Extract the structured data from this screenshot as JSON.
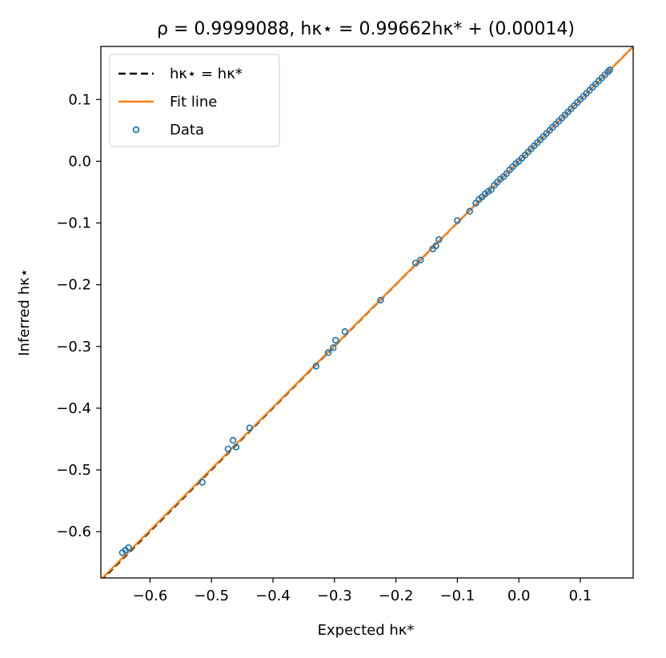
{
  "chart_data": {
    "type": "scatter",
    "title": "ρ = 0.9999088,   hκ⋆ = 0.99662hκ* + (0.00014)",
    "xlabel": "Expected hκ*",
    "ylabel": "Inferred hκ⋆",
    "xlim": [
      -0.68,
      0.186
    ],
    "ylim": [
      -0.675,
      0.186
    ],
    "xticks": [
      -0.6,
      -0.5,
      -0.4,
      -0.3,
      -0.2,
      -0.1,
      0.0,
      0.1
    ],
    "xtick_labels": [
      "−0.6",
      "−0.5",
      "−0.4",
      "−0.3",
      "−0.2",
      "−0.1",
      "0.0",
      "0.1"
    ],
    "yticks": [
      -0.6,
      -0.5,
      -0.4,
      -0.3,
      -0.2,
      -0.1,
      0.0,
      0.1
    ],
    "ytick_labels": [
      "−0.6",
      "−0.5",
      "−0.4",
      "−0.3",
      "−0.2",
      "−0.1",
      "0.0",
      "0.1"
    ],
    "grid": false,
    "legend_position": "top-left",
    "legend": [
      {
        "label": "hκ⋆ = hκ*",
        "style": "dashed",
        "color": "#000000"
      },
      {
        "label": "Fit line",
        "style": "solid",
        "color": "#ff7f0e"
      },
      {
        "label": "Data",
        "style": "marker",
        "color": "#1f77b4"
      }
    ],
    "identity_line": {
      "slope": 1,
      "intercept": 0
    },
    "fit_line": {
      "slope": 0.99662,
      "intercept": 0.00014
    },
    "series": [
      {
        "name": "Data",
        "points": [
          [
            -0.645,
            -0.634
          ],
          [
            -0.64,
            -0.63
          ],
          [
            -0.635,
            -0.626
          ],
          [
            -0.515,
            -0.52
          ],
          [
            -0.473,
            -0.466
          ],
          [
            -0.465,
            -0.452
          ],
          [
            -0.46,
            -0.463
          ],
          [
            -0.438,
            -0.432
          ],
          [
            -0.33,
            -0.332
          ],
          [
            -0.31,
            -0.31
          ],
          [
            -0.302,
            -0.302
          ],
          [
            -0.298,
            -0.29
          ],
          [
            -0.283,
            -0.276
          ],
          [
            -0.225,
            -0.225
          ],
          [
            -0.168,
            -0.165
          ],
          [
            -0.16,
            -0.16
          ],
          [
            -0.14,
            -0.142
          ],
          [
            -0.135,
            -0.137
          ],
          [
            -0.13,
            -0.127
          ],
          [
            -0.1,
            -0.096
          ],
          [
            -0.08,
            -0.081
          ],
          [
            -0.07,
            -0.068
          ],
          [
            -0.065,
            -0.062
          ],
          [
            -0.06,
            -0.058
          ],
          [
            -0.055,
            -0.053
          ],
          [
            -0.05,
            -0.049
          ],
          [
            -0.045,
            -0.046
          ],
          [
            -0.04,
            -0.039
          ],
          [
            -0.035,
            -0.034
          ],
          [
            -0.03,
            -0.029
          ],
          [
            -0.025,
            -0.025
          ],
          [
            -0.02,
            -0.02
          ],
          [
            -0.015,
            -0.014
          ],
          [
            -0.01,
            -0.009
          ],
          [
            -0.005,
            -0.004
          ],
          [
            0.0,
            0.0
          ],
          [
            0.005,
            0.005
          ],
          [
            0.01,
            0.01
          ],
          [
            0.015,
            0.015
          ],
          [
            0.02,
            0.02
          ],
          [
            0.025,
            0.025
          ],
          [
            0.03,
            0.03
          ],
          [
            0.035,
            0.035
          ],
          [
            0.04,
            0.04
          ],
          [
            0.045,
            0.045
          ],
          [
            0.05,
            0.05
          ],
          [
            0.055,
            0.055
          ],
          [
            0.06,
            0.06
          ],
          [
            0.065,
            0.065
          ],
          [
            0.07,
            0.07
          ],
          [
            0.075,
            0.075
          ],
          [
            0.08,
            0.08
          ],
          [
            0.085,
            0.085
          ],
          [
            0.09,
            0.09
          ],
          [
            0.095,
            0.095
          ],
          [
            0.1,
            0.1
          ],
          [
            0.105,
            0.105
          ],
          [
            0.11,
            0.11
          ],
          [
            0.115,
            0.115
          ],
          [
            0.12,
            0.12
          ],
          [
            0.125,
            0.125
          ],
          [
            0.13,
            0.13
          ],
          [
            0.135,
            0.135
          ],
          [
            0.14,
            0.14
          ],
          [
            0.145,
            0.145
          ],
          [
            0.148,
            0.148
          ]
        ]
      }
    ]
  }
}
